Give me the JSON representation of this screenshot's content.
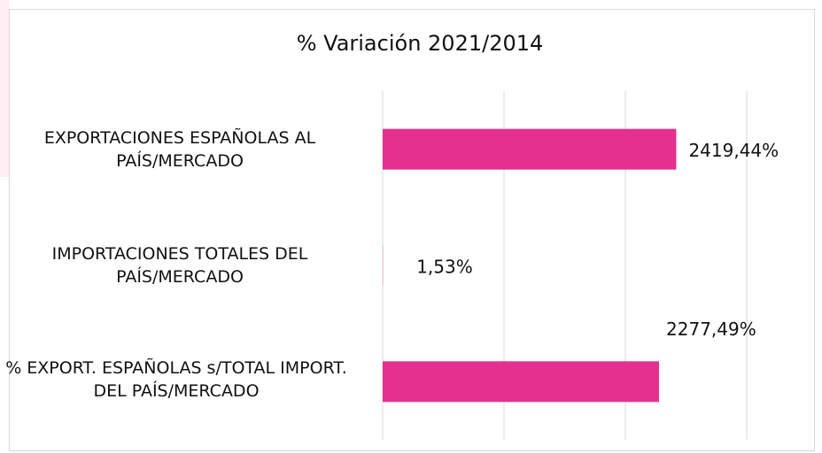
{
  "chart_data": {
    "type": "hbar",
    "title": "% Variación 2021/2014",
    "categories": [
      "EXPORTACIONES ESPAÑOLAS AL PAÍS/MERCADO",
      "IMPORTACIONES TOTALES DEL PAÍS/MERCADO",
      "% EXPORT. ESPAÑOLAS s/TOTAL IMPORT. DEL PAÍS/MERCADO"
    ],
    "values": [
      2419.44,
      1.53,
      2277.49
    ],
    "value_labels": [
      "2419,44%",
      "1,53%",
      "2277,49%"
    ],
    "color": "#e4318f",
    "xlim": [
      0,
      3000
    ],
    "xticks": [
      0,
      1000,
      2000,
      3000
    ],
    "grid": true
  }
}
